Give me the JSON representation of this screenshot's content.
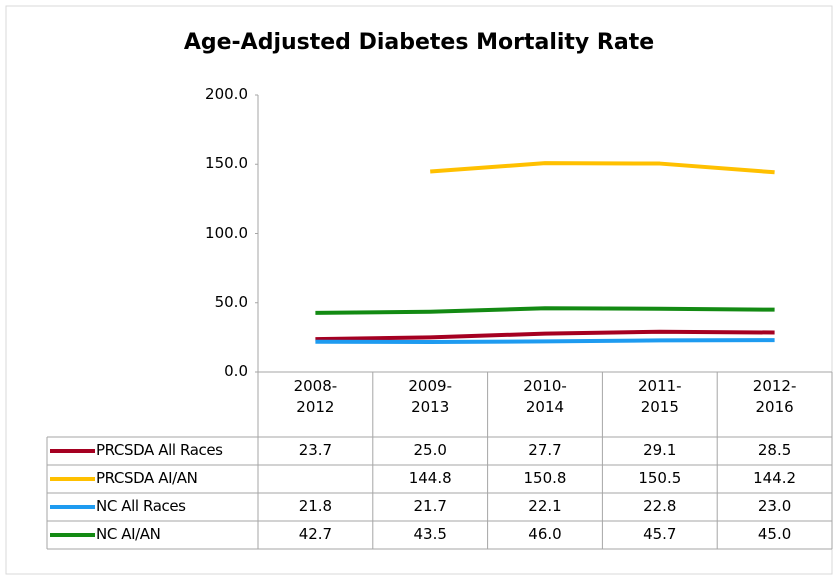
{
  "chart_data": {
    "type": "line",
    "title": "Age-Adjusted Diabetes Mortality Rate",
    "categories": [
      "2008-\n2012",
      "2009-\n2013",
      "2010-\n2014",
      "2011-\n2015",
      "2012-\n2016"
    ],
    "ylim": [
      0,
      200
    ],
    "yticks": [
      {
        "value": 0,
        "label": "0.0"
      },
      {
        "value": 50,
        "label": "50.0"
      },
      {
        "value": 100,
        "label": "100.0"
      },
      {
        "value": 150,
        "label": "150.0"
      },
      {
        "value": 200,
        "label": "200.0"
      }
    ],
    "grid": false,
    "series": [
      {
        "name": "PRCSDA All Races",
        "color": "#a50021",
        "values": [
          23.7,
          25,
          27.7,
          29.1,
          28.5
        ],
        "value_labels": [
          "23.7",
          "25.0",
          "27.7",
          "29.1",
          "28.5"
        ]
      },
      {
        "name": "PRCSDA AI/AN",
        "color": "#ffc000",
        "values": [
          null,
          144.8,
          150.8,
          150.5,
          144.2
        ],
        "value_labels": [
          null,
          "144.8",
          "150.8",
          "150.5",
          "144.2"
        ]
      },
      {
        "name": "NC All Races",
        "color": "#1e9bf0",
        "values": [
          21.8,
          21.7,
          22.1,
          22.8,
          23
        ],
        "value_labels": [
          "21.8",
          "21.7",
          "22.1",
          "22.8",
          "23.0"
        ]
      },
      {
        "name": "NC AI/AN",
        "color": "#138a13",
        "values": [
          42.7,
          43.5,
          46,
          45.7,
          45
        ],
        "value_labels": [
          "42.7",
          "43.5",
          "46.0",
          "45.7",
          "45.0"
        ]
      }
    ]
  }
}
